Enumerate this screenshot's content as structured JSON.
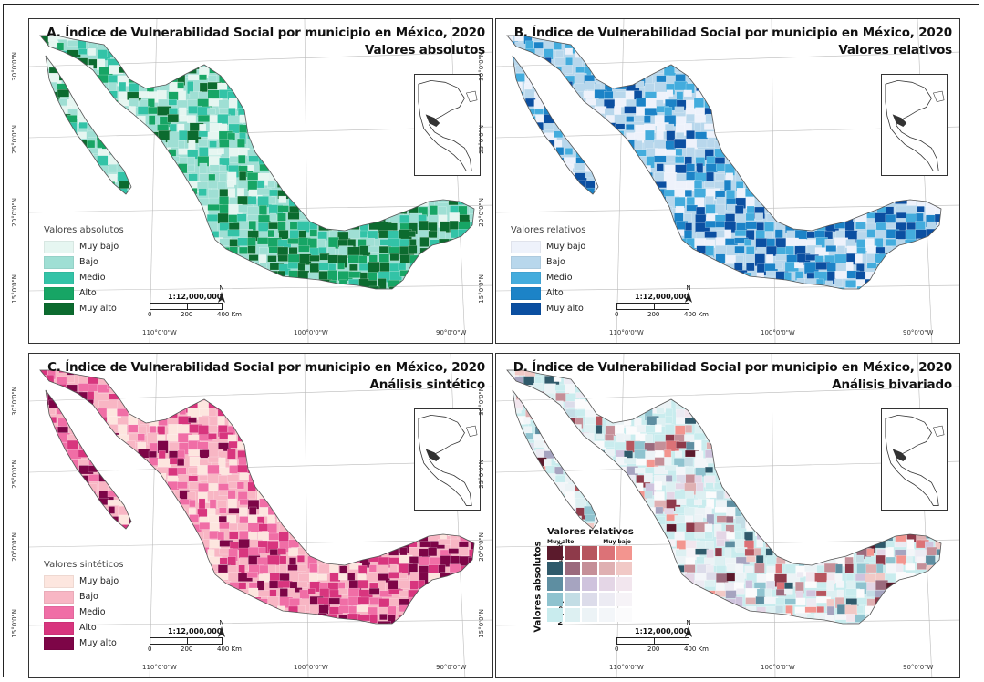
{
  "panels": [
    {
      "id": "a",
      "title": "A. Índice de Vulnerabilidad Social por municipio en México, 2020",
      "subtitle": "Valores absolutos",
      "legend_title": "Valores absolutos",
      "legend": [
        {
          "label": "Muy bajo",
          "color": "#e6f6f1"
        },
        {
          "label": "Bajo",
          "color": "#9fdfd4"
        },
        {
          "label": "Medio",
          "color": "#33c3a7"
        },
        {
          "label": "Alto",
          "color": "#17a565"
        },
        {
          "label": "Muy alto",
          "color": "#0c6b2f"
        }
      ]
    },
    {
      "id": "b",
      "title": "B. Índice de Vulnerabilidad Social por municipio en México, 2020",
      "subtitle": "Valores relativos",
      "legend_title": "Valores relativos",
      "legend": [
        {
          "label": "Muy bajo",
          "color": "#eef2fb"
        },
        {
          "label": "Bajo",
          "color": "#b8d7ec"
        },
        {
          "label": "Medio",
          "color": "#43acdd"
        },
        {
          "label": "Alto",
          "color": "#1c83c7"
        },
        {
          "label": "Muy alto",
          "color": "#0b4fa1"
        }
      ]
    },
    {
      "id": "c",
      "title": "C. Índice de Vulnerabilidad Social por municipio en México, 2020",
      "subtitle": "Análisis sintético",
      "legend_title": "Valores sintéticos",
      "legend": [
        {
          "label": "Muy bajo",
          "color": "#fde6df"
        },
        {
          "label": "Bajo",
          "color": "#f8b6c4"
        },
        {
          "label": "Medio",
          "color": "#f06ea6"
        },
        {
          "label": "Alto",
          "color": "#d8357e"
        },
        {
          "label": "Muy alto",
          "color": "#7d0547"
        }
      ]
    },
    {
      "id": "d",
      "title": "D. Índice de Vulnerabilidad Social por municipio en México, 2020",
      "subtitle": "Análisis bivariado"
    }
  ],
  "scale_bar": {
    "ratio": "1:12,000,000",
    "ticks": [
      "0",
      "200",
      "400 Km"
    ],
    "north_label": "N"
  },
  "graticule": {
    "lon_labels": [
      "110°0'0\"W",
      "100°0'0\"W",
      "90°0'0\"W"
    ],
    "lat_labels": [
      "30°0'0\"N",
      "25°0'0\"N",
      "20°0'0\"N",
      "15°0'0\"N"
    ]
  },
  "bivariate_legend": {
    "title": "Valores relativos",
    "x_high": "Muy alto",
    "x_low": "Muy bajo",
    "y_title": "Valores absolutos",
    "y_high": "Muy alto",
    "y_low": "Muy bajo",
    "colors": [
      [
        "#5b1a2c",
        "#8e3a4a",
        "#b7565f",
        "#dc7277",
        "#f3958f"
      ],
      [
        "#2f5a6b",
        "#9b6a7d",
        "#c58f98",
        "#dfb0b2",
        "#f1c9c6"
      ],
      [
        "#5e8ea1",
        "#a6a4c0",
        "#cfc3dd",
        "#e4d6e6",
        "#f2e6ee"
      ],
      [
        "#8fc3cf",
        "#c3dde5",
        "#dcdcea",
        "#ecebf3",
        "#f6f3f7"
      ],
      [
        "#c9ecee",
        "#ddf0f2",
        "#ecf3f6",
        "#f3f6f9",
        "#fbfbfc"
      ]
    ]
  }
}
